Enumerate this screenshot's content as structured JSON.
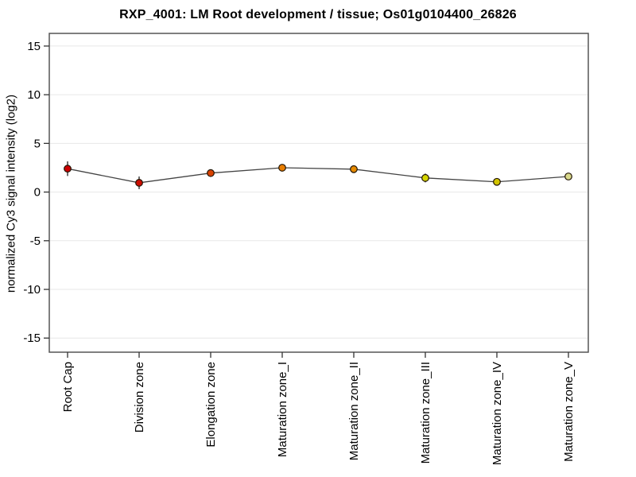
{
  "window": {
    "background": "#ffffff"
  },
  "chart_data": {
    "type": "line",
    "title": "RXP_4001: LM Root development / tissue; Os01g0104400_26826",
    "ylabel": "normalized Cy3 signal intensity (log2)",
    "xlabel": "",
    "categories": [
      "Root Cap",
      "Division zone",
      "Elongation zone",
      "Maturation zone_I",
      "Maturation zone_II",
      "Maturation zone_III",
      "Maturation zone_IV",
      "Maturation zone_V"
    ],
    "series": [
      {
        "name": "normalized Cy3 signal intensity",
        "values": [
          2.4,
          0.95,
          1.95,
          2.5,
          2.35,
          1.45,
          1.05,
          1.6
        ],
        "errors": [
          0.75,
          0.65,
          0.35,
          0.3,
          0.35,
          0.45,
          0.3,
          0.2
        ],
        "point_colors": [
          "#cc0000",
          "#cc0c00",
          "#d84200",
          "#e87d00",
          "#e68a00",
          "#d4d400",
          "#d2c400",
          "#d9d98c"
        ]
      }
    ],
    "yticks": [
      -15,
      -10,
      -5,
      0,
      5,
      10,
      15
    ],
    "ylim": [
      -16.45,
      16.3
    ],
    "grid": true,
    "legend_position": "none",
    "line_color": "#444444",
    "point_outline_color": "#221505",
    "error_bar_color": "#222222",
    "frame_color": "#555555",
    "gridline_color": "#e7e7e7",
    "tick_color": "#333333",
    "text_color": "#000000"
  }
}
